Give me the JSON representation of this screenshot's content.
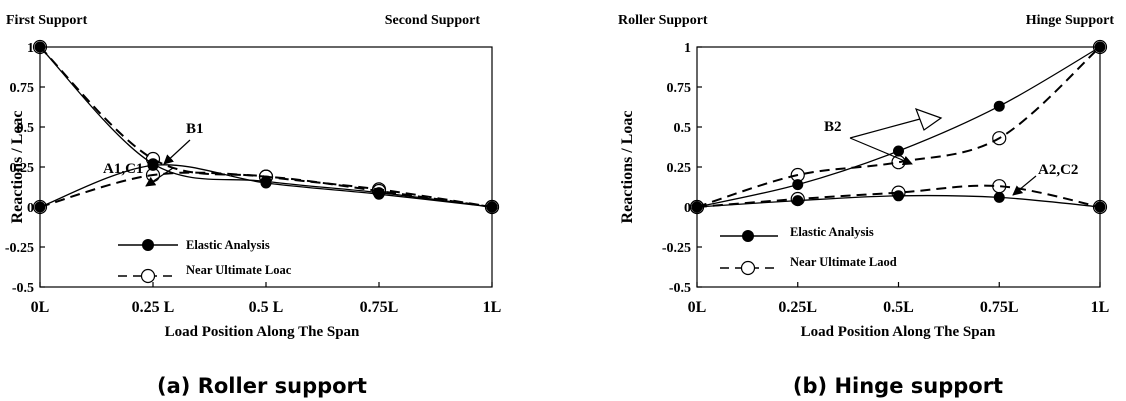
{
  "chart_data": [
    {
      "type": "line",
      "caption": "(a)  Roller support",
      "support_left": "First Support",
      "support_right": "Second Support",
      "xlabel": "Load Position Along The Span",
      "ylabel": "Reactions / Loac",
      "xlim": [
        0,
        1
      ],
      "ylim": [
        -0.5,
        1
      ],
      "x_ticks": [
        {
          "x": 0,
          "label": "0L"
        },
        {
          "x": 0.25,
          "label": "0.25 L"
        },
        {
          "x": 0.5,
          "label": "0.5 L"
        },
        {
          "x": 0.75,
          "label": "0.75L"
        },
        {
          "x": 1,
          "label": "1L"
        }
      ],
      "y_ticks": [
        {
          "y": 1,
          "label": "1"
        },
        {
          "y": 0.75,
          "label": "0.75"
        },
        {
          "y": 0.5,
          "label": "0.5"
        },
        {
          "y": 0.25,
          "label": "0.25"
        },
        {
          "y": 0,
          "label": "0"
        },
        {
          "y": -0.25,
          "label": "-0.25"
        },
        {
          "y": -0.5,
          "label": "-0.5"
        }
      ],
      "grid": false,
      "legend_position": "bottom-left",
      "legend": [
        {
          "label": "Elastic Analysis",
          "style": "solid",
          "marker": "filled-circle"
        },
        {
          "label": "Near Ultimate Loac",
          "style": "dashed",
          "marker": "open-circle"
        }
      ],
      "annotations": [
        {
          "text": "B1"
        },
        {
          "text": "A1,C1"
        }
      ],
      "series": [
        {
          "label_ref": "B1",
          "style": "solid",
          "marker": "filled-circle",
          "x": [
            0,
            0.25,
            0.5,
            0.75,
            1
          ],
          "y": [
            1,
            0.27,
            0.16,
            0.09,
            0
          ]
        },
        {
          "label_ref": "B1",
          "style": "dashed",
          "marker": "open-circle",
          "x": [
            0,
            0.25,
            0.5,
            0.75,
            1
          ],
          "y": [
            1,
            0.3,
            0.19,
            0.11,
            0
          ]
        },
        {
          "label_ref": "A1,C1",
          "style": "solid",
          "marker": "filled-circle",
          "x": [
            0,
            0.25,
            0.5,
            0.75,
            1
          ],
          "y": [
            0,
            0.26,
            0.15,
            0.08,
            0
          ]
        },
        {
          "label_ref": "A1,C1",
          "style": "dashed",
          "marker": "open-circle",
          "x": [
            0,
            0.25,
            0.5,
            0.75,
            1
          ],
          "y": [
            0,
            0.2,
            0.19,
            0.1,
            0
          ]
        }
      ]
    },
    {
      "type": "line",
      "caption": "(b)  Hinge support",
      "support_left": "Roller Support",
      "support_right": "Hinge Support",
      "xlabel": "Load Position Along The Span",
      "ylabel": "Reactions / Loac",
      "xlim": [
        0,
        1
      ],
      "ylim": [
        -0.5,
        1
      ],
      "x_ticks": [
        {
          "x": 0,
          "label": "0L"
        },
        {
          "x": 0.25,
          "label": "0.25L"
        },
        {
          "x": 0.5,
          "label": "0.5L"
        },
        {
          "x": 0.75,
          "label": "0.75L"
        },
        {
          "x": 1,
          "label": "1L"
        }
      ],
      "y_ticks": [
        {
          "y": 1,
          "label": "1"
        },
        {
          "y": 0.75,
          "label": "0.75"
        },
        {
          "y": 0.5,
          "label": "0.5"
        },
        {
          "y": 0.25,
          "label": "0.25"
        },
        {
          "y": 0,
          "label": "0"
        },
        {
          "y": -0.25,
          "label": "-0.25"
        },
        {
          "y": -0.5,
          "label": "-0.5"
        }
      ],
      "grid": false,
      "legend_position": "bottom-left",
      "legend": [
        {
          "label": "Elastic Analysis",
          "style": "solid",
          "marker": "filled-circle"
        },
        {
          "label": "Near Ultimate Laod",
          "style": "dashed",
          "marker": "open-circle"
        }
      ],
      "annotations": [
        {
          "text": "B2"
        },
        {
          "text": "A2,C2"
        }
      ],
      "series": [
        {
          "label_ref": "B2",
          "style": "solid",
          "marker": "filled-circle",
          "x": [
            0,
            0.25,
            0.5,
            0.75,
            1
          ],
          "y": [
            0,
            0.14,
            0.35,
            0.63,
            1
          ]
        },
        {
          "label_ref": "B2",
          "style": "dashed",
          "marker": "open-circle",
          "x": [
            0,
            0.25,
            0.5,
            0.75,
            1
          ],
          "y": [
            0,
            0.2,
            0.28,
            0.43,
            1
          ]
        },
        {
          "label_ref": "A2,C2",
          "style": "solid",
          "marker": "filled-circle",
          "x": [
            0,
            0.25,
            0.5,
            0.75,
            1
          ],
          "y": [
            0,
            0.04,
            0.07,
            0.06,
            0
          ]
        },
        {
          "label_ref": "A2,C2",
          "style": "dashed",
          "marker": "open-circle",
          "x": [
            0,
            0.25,
            0.5,
            0.75,
            1
          ],
          "y": [
            0,
            0.05,
            0.09,
            0.13,
            0
          ]
        }
      ]
    }
  ]
}
